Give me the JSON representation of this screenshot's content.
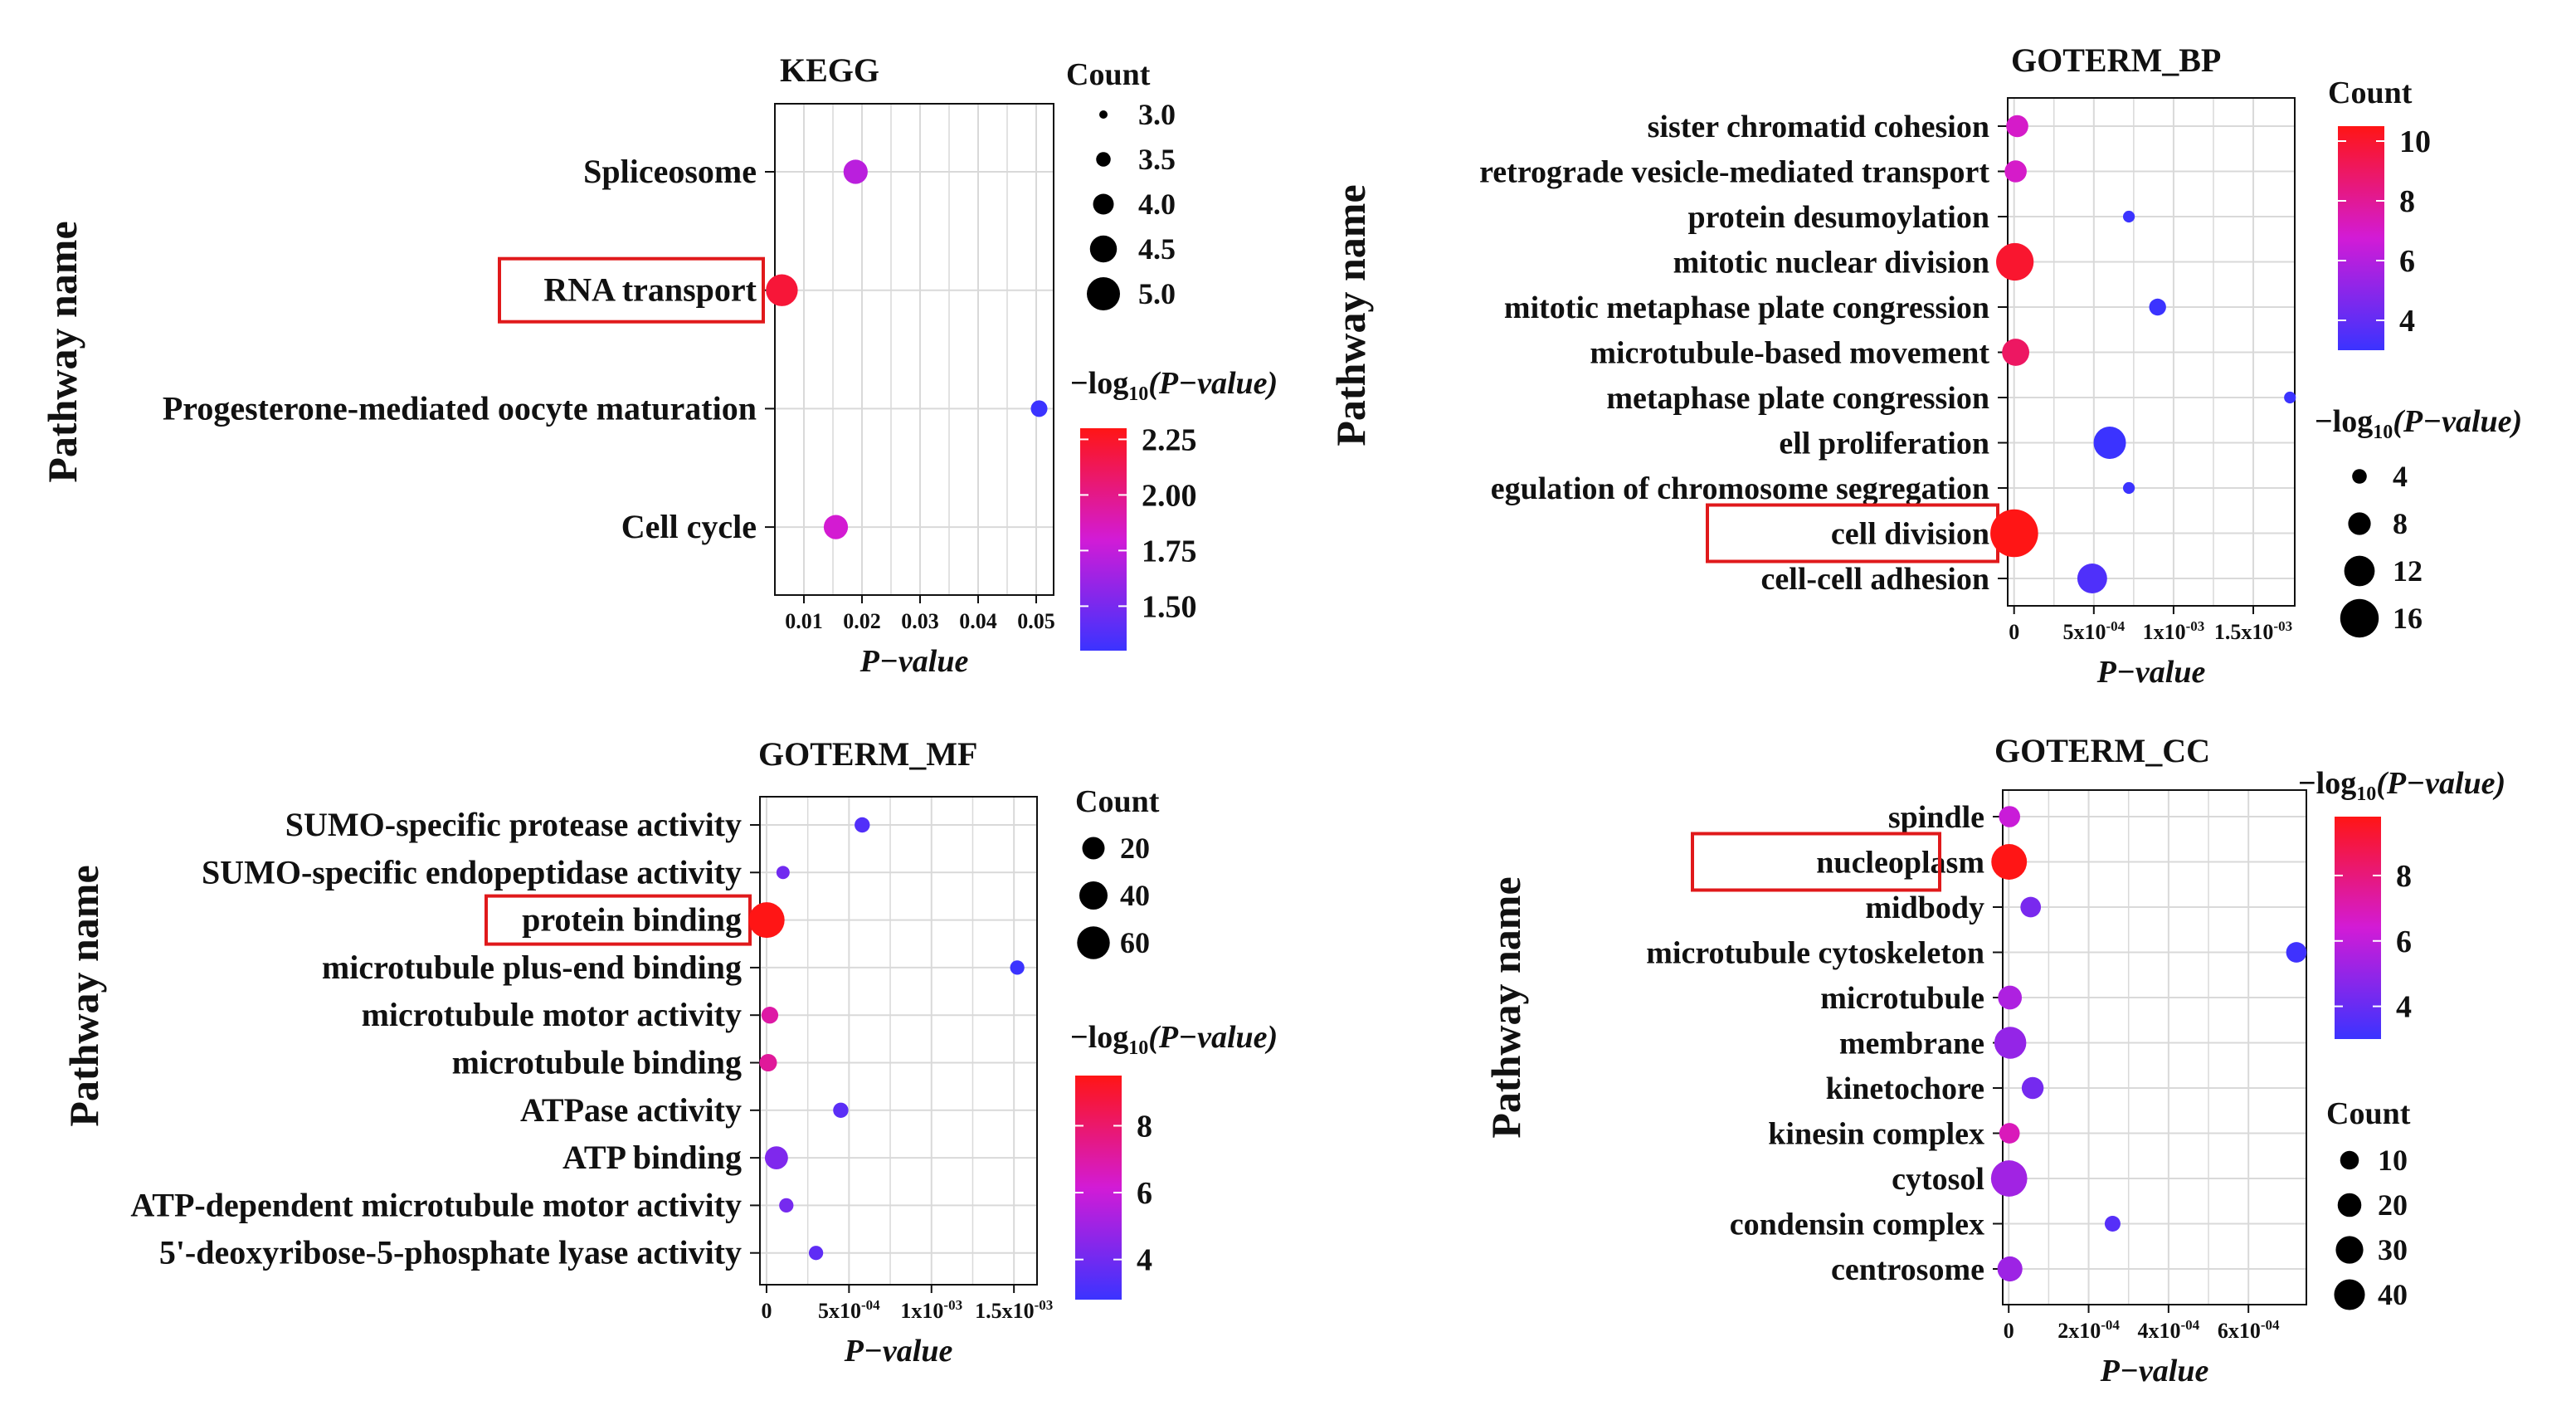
{
  "chart_data": [
    {
      "id": "kegg",
      "type": "scatter",
      "title": "KEGG",
      "ylabel": "Pathway name",
      "xlabel": "P−value",
      "xlim": [
        0.005,
        0.053
      ],
      "xticks": [
        0.01,
        0.02,
        0.03,
        0.04,
        0.05
      ],
      "xtick_labels": [
        "0.01",
        "0.02",
        "0.03",
        "0.04",
        "0.05"
      ],
      "categories": [
        "Spliceosome",
        "RNA transport",
        "Progesterone-mediated oocyte maturation",
        "Cell cycle"
      ],
      "highlight": [
        "RNA transport"
      ],
      "points": [
        {
          "category": "Spliceosome",
          "p": 0.0189,
          "count": 4,
          "neglog": 1.72
        },
        {
          "category": "RNA transport",
          "p": 0.0062,
          "count": 5,
          "neglog": 2.21
        },
        {
          "category": "Progesterone-mediated oocyte maturation",
          "p": 0.0505,
          "count": 3,
          "neglog": 1.3
        },
        {
          "category": "Cell cycle",
          "p": 0.0155,
          "count": 4,
          "neglog": 1.81
        }
      ],
      "legend_count": {
        "title": "Count",
        "values": [
          3.0,
          3.5,
          4.0,
          4.5,
          5.0
        ],
        "labels": [
          "3.0",
          "3.5",
          "4.0",
          "4.5",
          "5.0"
        ]
      },
      "legend_color": {
        "title_prefix": "−log",
        "title_sub": "10",
        "title_suffix": "(P−value)",
        "min": 1.3,
        "max": 2.3,
        "ticks": [
          2.25,
          2.0,
          1.75,
          1.5
        ],
        "tick_labels": [
          "2.25",
          "2.00",
          "1.75",
          "1.50"
        ]
      }
    },
    {
      "id": "bp",
      "type": "scatter",
      "title": "GOTERM_BP",
      "ylabel": "Pathway name",
      "xlabel": "P−value",
      "xlim": [
        -4e-05,
        0.00176
      ],
      "xticks": [
        0,
        0.0005,
        0.001,
        0.0015
      ],
      "xtick_labels": [
        [
          "0",
          ""
        ],
        [
          "5x10",
          "-04"
        ],
        [
          "1x10",
          "-03"
        ],
        [
          "1.5x10",
          "-03"
        ]
      ],
      "categories": [
        "sister chromatid cohesion",
        "retrograde vesicle-mediated transport",
        "protein desumoylation",
        "mitotic nuclear division",
        "mitotic metaphase plate congression",
        "microtubule-based movement",
        "metaphase plate congression",
        "ell proliferation",
        "egulation of chromosome segregation",
        "cell division",
        "cell-cell adhesion"
      ],
      "highlight": [
        "cell division"
      ],
      "points": [
        {
          "category": "sister chromatid cohesion",
          "p": 2e-05,
          "size": 6,
          "count": 7
        },
        {
          "category": "retrograde vesicle-mediated transport",
          "p": 1e-05,
          "size": 6,
          "count": 7
        },
        {
          "category": "protein desumoylation",
          "p": 0.00072,
          "size": 2,
          "count": 3
        },
        {
          "category": "mitotic nuclear division",
          "p": 5e-06,
          "size": 12,
          "count": 10
        },
        {
          "category": "mitotic metaphase plate congression",
          "p": 0.0009,
          "size": 4,
          "count": 3
        },
        {
          "category": "microtubule-based movement",
          "p": 1e-05,
          "size": 8,
          "count": 9
        },
        {
          "category": "metaphase plate congression",
          "p": 0.00173,
          "size": 2,
          "count": 3
        },
        {
          "category": "ell proliferation",
          "p": 0.0006,
          "size": 10,
          "count": 3
        },
        {
          "category": "egulation of chromosome segregation",
          "p": 0.00072,
          "size": 2,
          "count": 3
        },
        {
          "category": "cell division",
          "p": 1e-06,
          "size": 16,
          "count": 10.5
        },
        {
          "category": "cell-cell adhesion",
          "p": 0.00049,
          "size": 9,
          "count": 3.5
        }
      ],
      "legend_count": {
        "title": "Count",
        "min": 3,
        "max": 10.5,
        "ticks": [
          10,
          8,
          6,
          4
        ],
        "tick_labels": [
          "10",
          "8",
          "6",
          "4"
        ]
      },
      "legend_size": {
        "title_prefix": "−log",
        "title_sub": "10",
        "title_suffix": "(P−value)",
        "values": [
          4,
          8,
          12,
          16
        ],
        "labels": [
          "4",
          "8",
          "12",
          "16"
        ]
      }
    },
    {
      "id": "mf",
      "type": "scatter",
      "title": "GOTERM_MF",
      "ylabel": "Pathway name",
      "xlabel": "P−value",
      "xlim": [
        -4e-05,
        0.00164
      ],
      "xticks": [
        0,
        0.0005,
        0.001,
        0.0015
      ],
      "xtick_labels": [
        [
          "0",
          ""
        ],
        [
          "5x10",
          "-04"
        ],
        [
          "1x10",
          "-03"
        ],
        [
          "1.5x10",
          "-03"
        ]
      ],
      "categories": [
        "SUMO-specific protease activity",
        "SUMO-specific endopeptidase activity",
        "protein binding",
        "microtubule plus-end binding",
        "microtubule motor activity",
        "microtubule binding",
        "ATPase activity",
        "ATP binding",
        "ATP-dependent microtubule motor activity",
        "5'-deoxyribose-5-phosphate lyase activity"
      ],
      "highlight": [
        "protein binding"
      ],
      "points": [
        {
          "category": "SUMO-specific protease activity",
          "p": 0.00058,
          "count": 4,
          "neglog": 3.3
        },
        {
          "category": "SUMO-specific endopeptidase activity",
          "p": 0.0001,
          "count": 2,
          "neglog": 4.0
        },
        {
          "category": "protein binding",
          "p": 1e-06,
          "count": 62,
          "neglog": 9.5
        },
        {
          "category": "microtubule plus-end binding",
          "p": 0.00152,
          "count": 3,
          "neglog": 2.8
        },
        {
          "category": "microtubule motor activity",
          "p": 2e-05,
          "count": 6,
          "neglog": 7.0
        },
        {
          "category": "microtubule binding",
          "p": 1e-05,
          "count": 7,
          "neglog": 7.2
        },
        {
          "category": "ATPase activity",
          "p": 0.00045,
          "count": 4,
          "neglog": 3.5
        },
        {
          "category": "ATP binding",
          "p": 6e-05,
          "count": 18,
          "neglog": 4.3
        },
        {
          "category": "ATP-dependent microtubule motor activity",
          "p": 0.00012,
          "count": 3,
          "neglog": 4.1
        },
        {
          "category": "5'-deoxyribose-5-phosphate lyase activity",
          "p": 0.0003,
          "count": 3,
          "neglog": 3.6
        }
      ],
      "legend_count": {
        "title": "Count",
        "values": [
          20,
          40,
          60
        ],
        "labels": [
          "20",
          "40",
          "60"
        ]
      },
      "legend_color": {
        "title_prefix": "−log",
        "title_sub": "10",
        "title_suffix": "(P−value)",
        "min": 2.8,
        "max": 9.5,
        "ticks": [
          8,
          6,
          4
        ],
        "tick_labels": [
          "8",
          "6",
          "4"
        ]
      }
    },
    {
      "id": "cc",
      "type": "scatter",
      "title": "GOTERM_CC",
      "ylabel": "Pathway name",
      "xlabel": "P−value",
      "xlim": [
        -1.5e-05,
        0.000745
      ],
      "xticks": [
        0,
        0.0002,
        0.0004,
        0.0006
      ],
      "xtick_labels": [
        [
          "0",
          ""
        ],
        [
          "2x10",
          "-04"
        ],
        [
          "4x10",
          "-04"
        ],
        [
          "6x10",
          "-04"
        ]
      ],
      "categories": [
        "spindle",
        "nucleoplasm",
        "midbody",
        "microtubule cytoskeleton",
        "microtubule",
        "membrane",
        "kinetochore",
        "kinesin complex",
        "cytosol",
        "condensin complex",
        "centrosome"
      ],
      "highlight": [
        "nucleoplasm"
      ],
      "points": [
        {
          "category": "spindle",
          "p": 2e-06,
          "count": 9,
          "neglog": 6.2
        },
        {
          "category": "nucleoplasm",
          "p": 1e-06,
          "count": 40,
          "neglog": 9.8
        },
        {
          "category": "midbody",
          "p": 5.5e-05,
          "count": 8,
          "neglog": 4.4
        },
        {
          "category": "microtubule cytoskeleton",
          "p": 0.00072,
          "count": 8,
          "neglog": 3.1
        },
        {
          "category": "microtubule",
          "p": 3e-06,
          "count": 13,
          "neglog": 5.6
        },
        {
          "category": "membrane",
          "p": 4e-06,
          "count": 30,
          "neglog": 5.0
        },
        {
          "category": "kinetochore",
          "p": 6e-05,
          "count": 10,
          "neglog": 4.3
        },
        {
          "category": "kinesin complex",
          "p": 2e-06,
          "count": 8,
          "neglog": 6.9
        },
        {
          "category": "cytosol",
          "p": 1e-06,
          "count": 42,
          "neglog": 5.3
        },
        {
          "category": "condensin complex",
          "p": 0.00026,
          "count": 3,
          "neglog": 3.6
        },
        {
          "category": "centrosome",
          "p": 3e-06,
          "count": 15,
          "neglog": 5.2
        }
      ],
      "legend_count": {
        "title": "Count",
        "values": [
          10,
          20,
          30,
          40
        ],
        "labels": [
          "10",
          "20",
          "30",
          "40"
        ]
      },
      "legend_color": {
        "title_prefix": "−log",
        "title_sub": "10",
        "title_suffix": "(P−value)",
        "min": 3.0,
        "max": 9.8,
        "ticks": [
          8,
          6,
          4
        ],
        "tick_labels": [
          "8",
          "6",
          "4"
        ]
      }
    }
  ],
  "colors": {
    "low": "#3b33ff",
    "mid": "#d21bd6",
    "high": "#ff1515",
    "highlight_box": "#e0191b",
    "axis": "#111111",
    "grid": "#d9d9d9"
  }
}
